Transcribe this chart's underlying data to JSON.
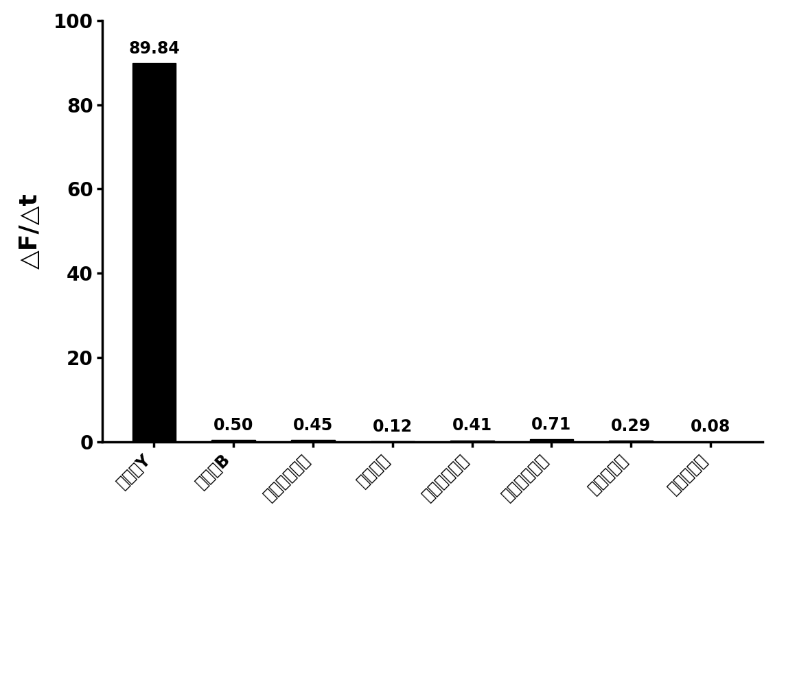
{
  "categories": [
    "缧肅酶Y",
    "缧肅酶B",
    "胰蒙乳蛋白酶",
    "胰蛋白酶",
    "乙酰胆碱酯酶",
    "丁酰胆碱酯酶",
    "弹性蛋白酶",
    "牛血清蛋白"
  ],
  "values": [
    89.84,
    0.5,
    0.45,
    0.12,
    0.41,
    0.71,
    0.29,
    0.08
  ],
  "bar_color": "#000000",
  "ylabel": "△F/△t",
  "ylim": [
    0,
    100
  ],
  "yticks": [
    0,
    20,
    40,
    60,
    80,
    100
  ],
  "background_color": "#ffffff",
  "bar_width": 0.55
}
